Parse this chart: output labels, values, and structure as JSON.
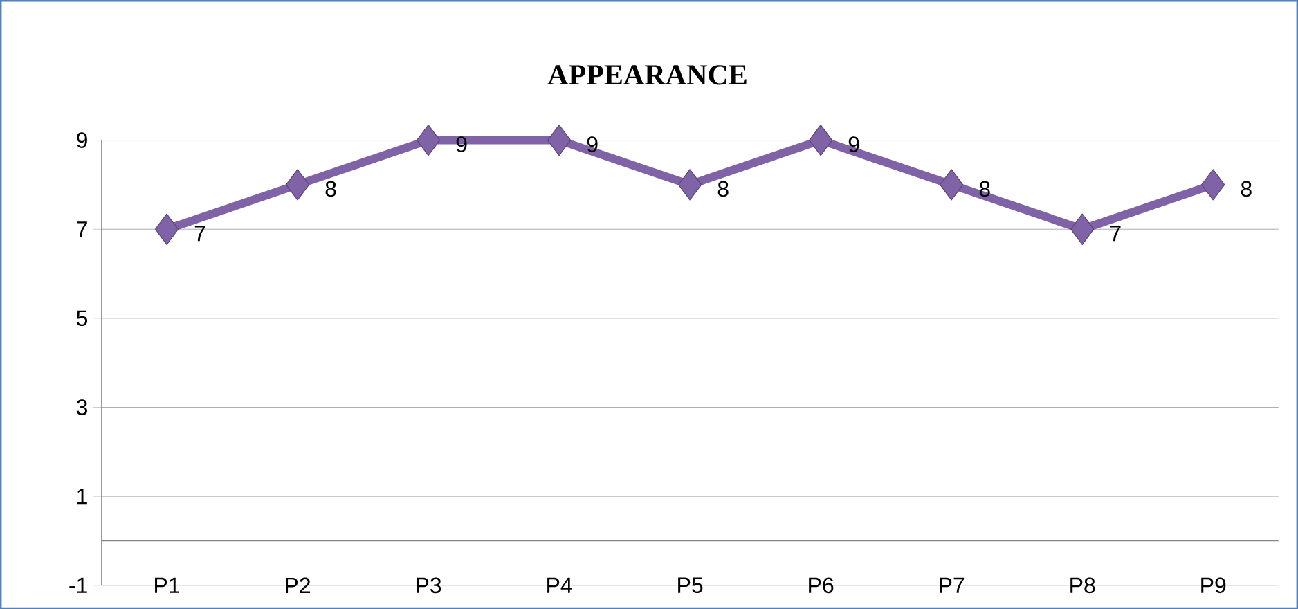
{
  "chart_data": {
    "type": "line",
    "title": "APPEARANCE",
    "categories": [
      "P1",
      "P2",
      "P3",
      "P4",
      "P5",
      "P6",
      "P7",
      "P8",
      "P9"
    ],
    "values": [
      7,
      8,
      9,
      9,
      8,
      9,
      8,
      7,
      8
    ],
    "color": "#7f63a6",
    "marker": "diamond",
    "data_labels": true,
    "ylim": [
      -1,
      9
    ],
    "yticks": [
      -1,
      1,
      3,
      5,
      7,
      9
    ],
    "grid": "y",
    "ref_lines": [
      {
        "axis": "y",
        "value": 0,
        "color": "#868686"
      }
    ]
  }
}
